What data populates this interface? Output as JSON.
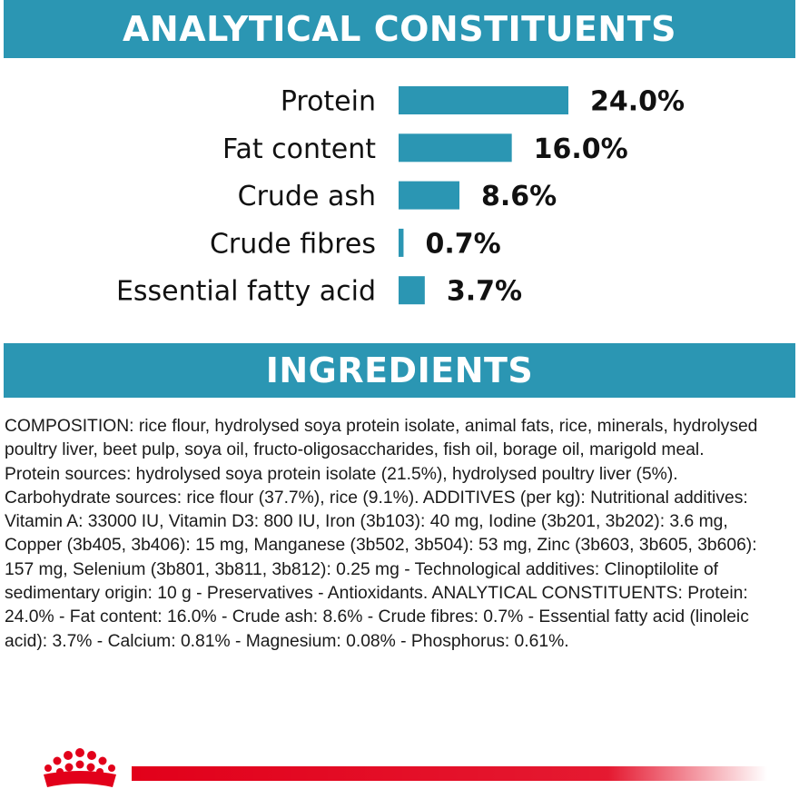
{
  "header": {
    "title": "ANALYTICAL CONSTITUENTS"
  },
  "chart_data": {
    "type": "bar",
    "orientation": "horizontal",
    "categories": [
      "Protein",
      "Fat content",
      "Crude ash",
      "Crude fibres",
      "Essential fatty acid"
    ],
    "values": [
      24.0,
      16.0,
      8.6,
      0.7,
      3.7
    ],
    "value_labels": [
      "24.0%",
      "16.0%",
      "8.6%",
      "0.7%",
      "3.7%"
    ],
    "title": "",
    "xlabel": "",
    "ylabel": "",
    "grid": false,
    "legend": "none",
    "bar_color": "#2b96b3"
  },
  "ingredients": {
    "title": "INGREDIENTS",
    "lines": [
      "COMPOSITION: rice flour, hydrolysed soya protein isolate, animal fats, rice, minerals, hydrolysed",
      "poultry liver, beet pulp, soya oil, fructo-oligosaccharides, fish oil, borage oil, marigold meal.",
      "Protein sources: hydrolysed soya protein isolate (21.5%), hydrolysed poultry liver (5%).",
      "Carbohydrate sources: rice flour (37.7%), rice (9.1%). ADDITIVES (per kg): Nutritional additives:",
      "Vitamin A: 33000 IU, Vitamin D3: 800 IU, Iron (3b103): 40 mg, Iodine (3b201, 3b202): 3.6 mg,",
      "Copper (3b405, 3b406): 15 mg, Manganese (3b502, 3b504): 53 mg, Zinc (3b603, 3b605, 3b606):",
      "157 mg, Selenium (3b801, 3b811, 3b812): 0.25 mg - Technological additives: Clinoptilolite of",
      "sedimentary origin: 10 g - Preservatives - Antioxidants. ANALYTICAL CONSTITUENTS: Protein:",
      "24.0% - Fat content: 16.0% - Crude ash: 8.6% - Crude fibres: 0.7% - Essential fatty acid (linoleic",
      "acid): 3.7% - Calcium: 0.81% - Magnesium: 0.08% - Phosphorus: 0.61%."
    ]
  },
  "footer": {
    "logo_icon": "crown-icon",
    "line_color": "#e2001a"
  },
  "colors": {
    "banner": "#2b96b3",
    "banner_text": "#ffffff",
    "accent_red": "#e2001a"
  }
}
